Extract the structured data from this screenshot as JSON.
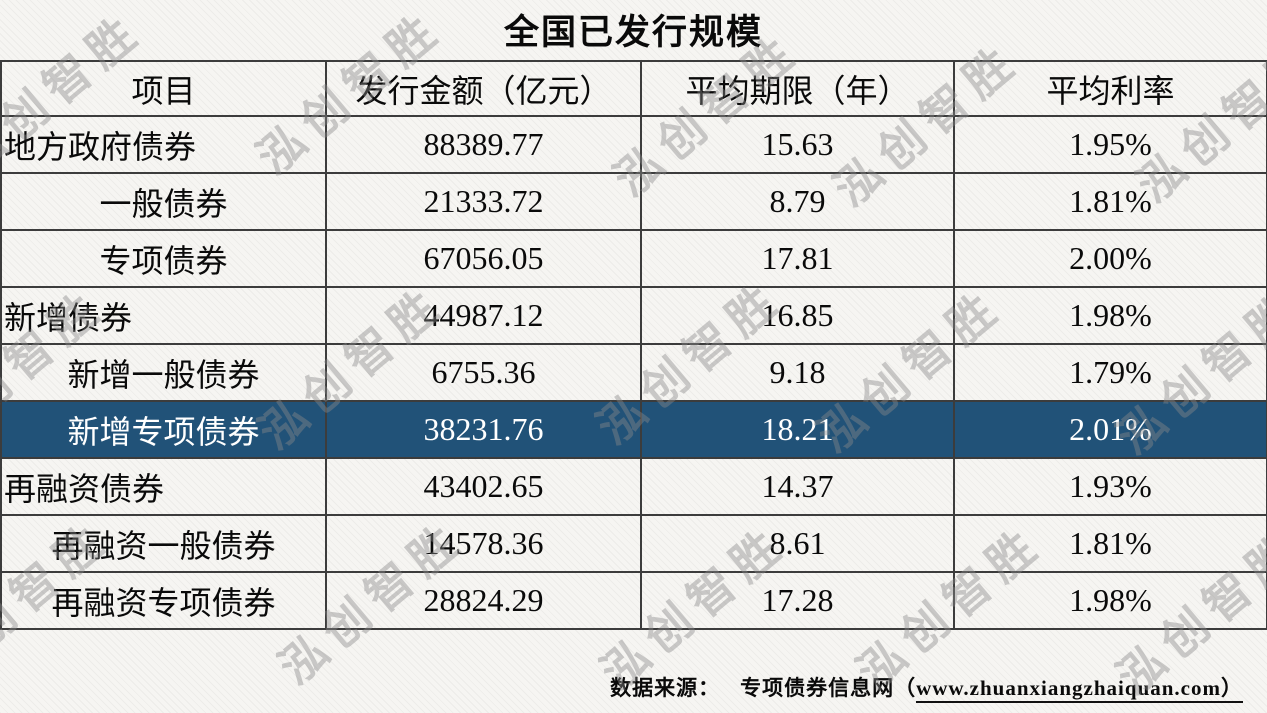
{
  "title": "全国已发行规模",
  "watermark": {
    "text": "泓创智胜"
  },
  "source": {
    "label": "数据来源：",
    "site": "专项债券信息网",
    "paren_open": "（",
    "url": "www.zhuanxiangzhaiquan.com",
    "paren_close": "）"
  },
  "colors": {
    "highlight_row_bg": "#215278",
    "highlight_row_text": "#ffffff",
    "table_border": "#3c3c3c",
    "watermark": "#8a8a8a"
  },
  "chart_data": {
    "type": "table",
    "title": "全国已发行规模",
    "columns": [
      "项目",
      "发行金额（亿元）",
      "平均期限（年）",
      "平均利率"
    ],
    "rows": [
      {
        "item": "地方政府债券",
        "amount": "88389.77",
        "term": "15.63",
        "rate": "1.95%",
        "level": 1,
        "highlight": false
      },
      {
        "item": "一般债券",
        "amount": "21333.72",
        "term": "8.79",
        "rate": "1.81%",
        "level": 2,
        "highlight": false
      },
      {
        "item": "专项债券",
        "amount": "67056.05",
        "term": "17.81",
        "rate": "2.00%",
        "level": 2,
        "highlight": false
      },
      {
        "item": "新增债券",
        "amount": "44987.12",
        "term": "16.85",
        "rate": "1.98%",
        "level": 1,
        "highlight": false
      },
      {
        "item": "新增一般债券",
        "amount": "6755.36",
        "term": "9.18",
        "rate": "1.79%",
        "level": 2,
        "highlight": false
      },
      {
        "item": "新增专项债券",
        "amount": "38231.76",
        "term": "18.21",
        "rate": "2.01%",
        "level": 2,
        "highlight": true
      },
      {
        "item": "再融资债券",
        "amount": "43402.65",
        "term": "14.37",
        "rate": "1.93%",
        "level": 1,
        "highlight": false
      },
      {
        "item": "再融资一般债券",
        "amount": "14578.36",
        "term": "8.61",
        "rate": "1.81%",
        "level": 2,
        "highlight": false
      },
      {
        "item": "再融资专项债券",
        "amount": "28824.29",
        "term": "17.28",
        "rate": "1.98%",
        "level": 2,
        "highlight": false
      }
    ]
  }
}
